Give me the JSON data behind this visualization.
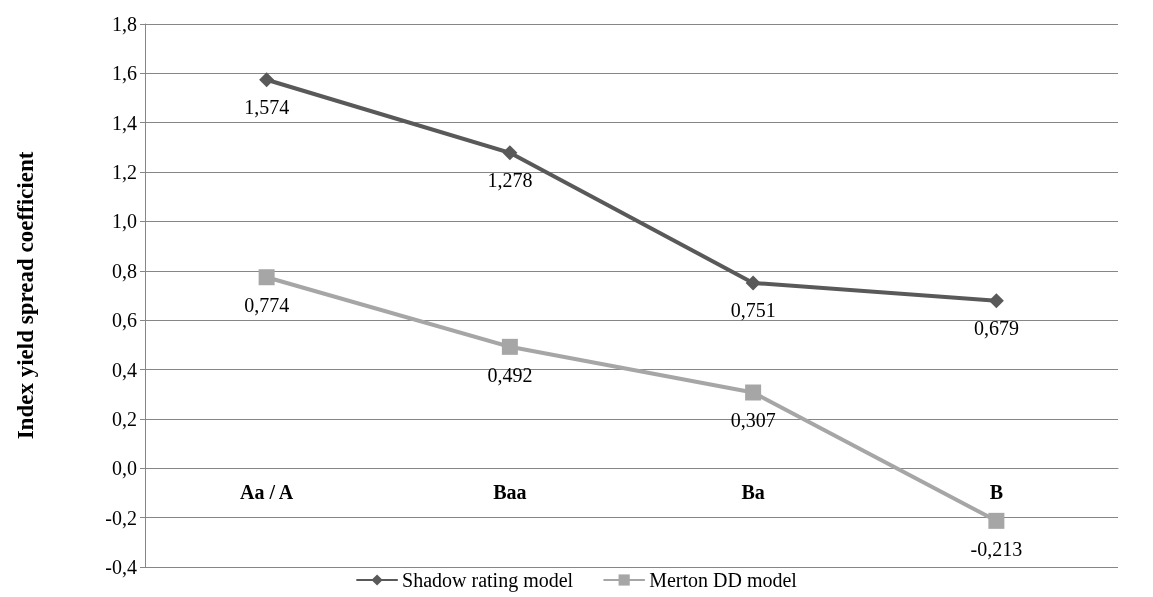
{
  "chart_data": {
    "type": "line",
    "ylabel": "Index yield spread coefficient",
    "categories": [
      "Aa / A",
      "Baa",
      "Ba",
      "B"
    ],
    "series": [
      {
        "name": "Shadow rating model",
        "color": "#595959",
        "marker": "diamond",
        "values": [
          1.574,
          1.278,
          0.751,
          0.679
        ],
        "value_labels": [
          "1,574",
          "1,278",
          "0,751",
          "0,679"
        ]
      },
      {
        "name": "Merton DD model",
        "color": "#a6a6a6",
        "marker": "square",
        "values": [
          0.774,
          0.492,
          0.307,
          -0.213
        ],
        "value_labels": [
          "0,774",
          "0,492",
          "0,307",
          "-0,213"
        ]
      }
    ],
    "ylim": [
      -0.4,
      1.8
    ],
    "yticks": [
      {
        "value": -0.4,
        "label": "-0,4"
      },
      {
        "value": -0.2,
        "label": "-0,2"
      },
      {
        "value": 0,
        "label": "0,0"
      },
      {
        "value": 0.2,
        "label": "0,2"
      },
      {
        "value": 0.4,
        "label": "0,4"
      },
      {
        "value": 0.6,
        "label": "0,6"
      },
      {
        "value": 0.8,
        "label": "0,8"
      },
      {
        "value": 1,
        "label": "1,0"
      },
      {
        "value": 1.2,
        "label": "1,2"
      },
      {
        "value": 1.4,
        "label": "1,4"
      },
      {
        "value": 1.6,
        "label": "1,6"
      },
      {
        "value": 1.8,
        "label": "1,8"
      }
    ],
    "grid": "y",
    "legend": "bottom",
    "line_style": "solid"
  }
}
